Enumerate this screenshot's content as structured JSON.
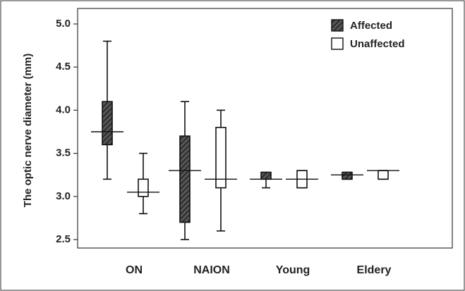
{
  "chart_data": {
    "type": "box",
    "ylabel": "The optic nerve diameter (mm)",
    "xlabel": "",
    "ylim": [
      2.45,
      5.1
    ],
    "yticks": [
      "2.5",
      "3.0",
      "3.5",
      "4.0",
      "4.5",
      "5.0"
    ],
    "grid": false,
    "legend_position": "top-right",
    "categories": [
      "ON",
      "NAION",
      "Young",
      "Eldery"
    ],
    "series": [
      {
        "name": "Affected",
        "pattern": "hatched",
        "fill": "#333333",
        "boxes": [
          {
            "min": 3.2,
            "q1": 3.6,
            "median": 3.75,
            "q3": 4.1,
            "max": 4.8
          },
          {
            "min": 2.5,
            "q1": 2.7,
            "median": 3.3,
            "q3": 3.7,
            "max": 4.1
          },
          {
            "min": 3.1,
            "q1": 3.2,
            "median": 3.2,
            "q3": 3.28,
            "max": 3.28
          },
          {
            "min": 3.2,
            "q1": 3.2,
            "median": 3.25,
            "q3": 3.28,
            "max": 3.28
          }
        ]
      },
      {
        "name": "Unaffected",
        "pattern": "solid",
        "fill": "#ffffff",
        "boxes": [
          {
            "min": 2.8,
            "q1": 3.0,
            "median": 3.05,
            "q3": 3.2,
            "max": 3.5
          },
          {
            "min": 2.6,
            "q1": 3.1,
            "median": 3.2,
            "q3": 3.8,
            "max": 4.0
          },
          {
            "min": 3.1,
            "q1": 3.1,
            "median": 3.2,
            "q3": 3.3,
            "max": 3.3
          },
          {
            "min": 3.2,
            "q1": 3.2,
            "median": 3.3,
            "q3": 3.3,
            "max": 3.3
          }
        ]
      }
    ]
  }
}
